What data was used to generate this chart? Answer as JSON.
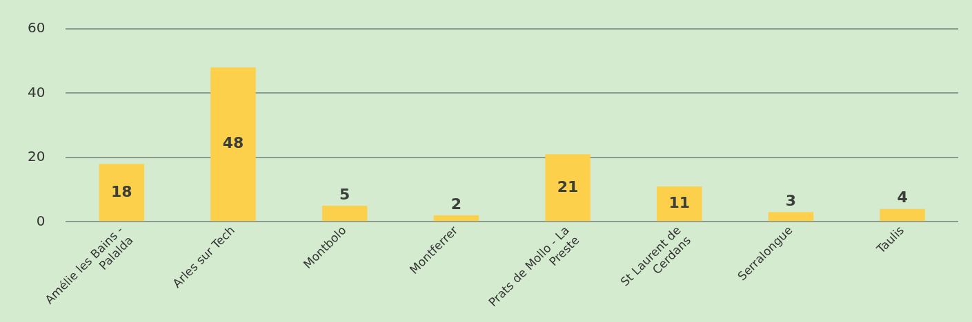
{
  "chart_data": {
    "type": "bar",
    "categories": [
      "Amélie les Bains - Palalda",
      "Arles sur Tech",
      "Montbolo",
      "Montferrer",
      "Prats de Mollo - La Preste",
      "St Laurent de Cerdans",
      "Serralongue",
      "Taulis"
    ],
    "values": [
      18,
      48,
      5,
      2,
      21,
      11,
      3,
      4
    ],
    "color": "#fcd04a",
    "ylim": [
      0,
      60
    ],
    "yticks": [
      0,
      20,
      40,
      60
    ],
    "grid": "y",
    "legend": false,
    "data_labels": true
  }
}
